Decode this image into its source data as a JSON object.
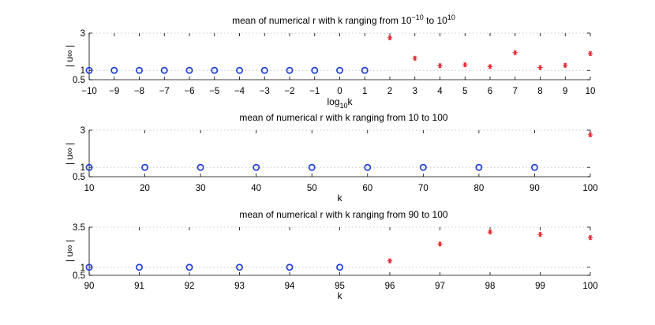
{
  "chart_data": [
    {
      "type": "scatter",
      "title": "mean of numerical r with k ranging from 10",
      "title_parts": {
        "pre": "mean of numerical r with k ranging from 10",
        "sup1": "−10",
        "mid": " to 10",
        "sup2": "10"
      },
      "xlabel": "log",
      "xlabel_sub": "10",
      "xlabel_post": "k",
      "ylabel": "| u∞ |",
      "xlim": [
        -10,
        10
      ],
      "ylim": [
        0.5,
        3
      ],
      "xticks": [
        -10,
        -9,
        -8,
        -7,
        -6,
        -5,
        -4,
        -3,
        -2,
        -1,
        0,
        1,
        2,
        3,
        4,
        5,
        6,
        7,
        8,
        9,
        10
      ],
      "xtick_labels": [
        "−10",
        "−9",
        "−8",
        "−7",
        "−6",
        "−5",
        "−4",
        "−3",
        "−2",
        "−1",
        "0",
        "1",
        "2",
        "3",
        "4",
        "5",
        "6",
        "7",
        "8",
        "9",
        "10"
      ],
      "yticks": [
        0.5,
        1,
        3
      ],
      "ytick_labels": [
        "0.5",
        "1",
        "3"
      ],
      "grid_y": [
        1,
        3
      ],
      "series": [
        {
          "marker": "circle",
          "color": "#1f3fd6",
          "x": [
            -10,
            -9,
            -8,
            -7,
            -6,
            -5,
            -4,
            -3,
            -2,
            -1,
            0,
            1
          ],
          "y": [
            1,
            1,
            1,
            1,
            1,
            1,
            1,
            1,
            1,
            1,
            1,
            1
          ]
        },
        {
          "marker": "star",
          "color": "#e8202a",
          "x": [
            2,
            3,
            4,
            5,
            6,
            7,
            8,
            9,
            10
          ],
          "y": [
            2.75,
            1.65,
            1.25,
            1.3,
            1.2,
            1.95,
            1.15,
            1.27,
            1.9
          ]
        }
      ]
    },
    {
      "type": "scatter",
      "title": "mean of numerical r with k ranging from 10 to 100",
      "xlabel": "k",
      "ylabel": "| u∞ |",
      "xlim": [
        10,
        100
      ],
      "ylim": [
        0.5,
        3
      ],
      "xticks": [
        10,
        20,
        30,
        40,
        50,
        60,
        70,
        80,
        90,
        100
      ],
      "xtick_labels": [
        "10",
        "20",
        "30",
        "40",
        "50",
        "60",
        "70",
        "80",
        "90",
        "100"
      ],
      "yticks": [
        0.5,
        1,
        3
      ],
      "ytick_labels": [
        "0.5",
        "1",
        "3"
      ],
      "grid_y": [
        1,
        3
      ],
      "series": [
        {
          "marker": "circle",
          "color": "#1f3fd6",
          "x": [
            10,
            20,
            30,
            40,
            50,
            60,
            70,
            80,
            90
          ],
          "y": [
            1,
            1,
            1,
            1,
            1,
            1,
            1,
            1,
            1
          ]
        },
        {
          "marker": "star",
          "color": "#e8202a",
          "x": [
            100
          ],
          "y": [
            2.75
          ]
        }
      ]
    },
    {
      "type": "scatter",
      "title": "mean of numerical r with k ranging from 90 to 100",
      "xlabel": "k",
      "ylabel": "| u∞ |",
      "xlim": [
        90,
        100
      ],
      "ylim": [
        0.5,
        3.5
      ],
      "xticks": [
        90,
        91,
        92,
        93,
        94,
        95,
        96,
        97,
        98,
        99,
        100
      ],
      "xtick_labels": [
        "90",
        "91",
        "92",
        "93",
        "94",
        "95",
        "96",
        "97",
        "98",
        "99",
        "100"
      ],
      "yticks": [
        0.5,
        1,
        3.5
      ],
      "ytick_labels": [
        "0.5",
        "1",
        "3.5"
      ],
      "grid_y": [
        1,
        3.5
      ],
      "series": [
        {
          "marker": "circle",
          "color": "#1f3fd6",
          "x": [
            90,
            91,
            92,
            93,
            94,
            95
          ],
          "y": [
            1,
            1,
            1,
            1,
            1,
            1
          ]
        },
        {
          "marker": "star",
          "color": "#e8202a",
          "x": [
            96,
            97,
            98,
            99,
            100
          ],
          "y": [
            1.4,
            2.45,
            3.2,
            3.05,
            2.85
          ]
        }
      ]
    }
  ]
}
